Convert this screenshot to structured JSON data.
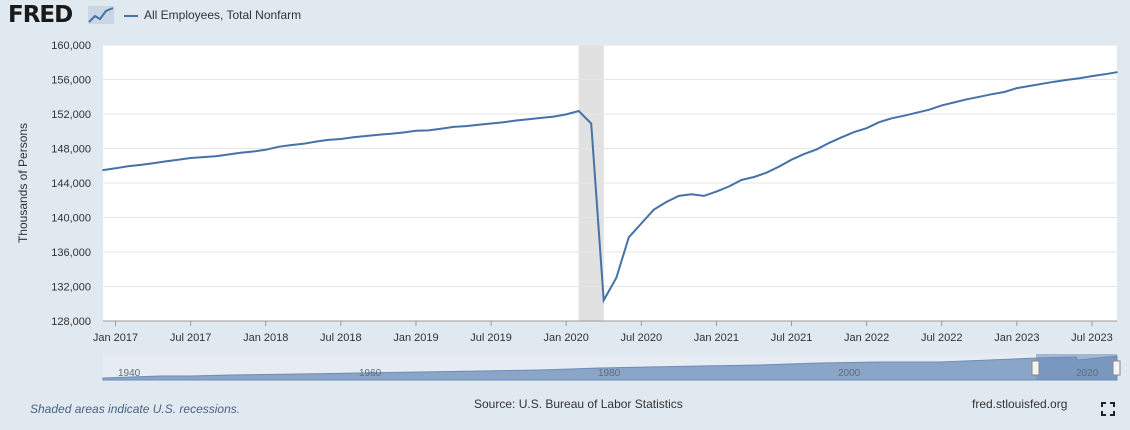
{
  "brand": {
    "logo_text": "FRED"
  },
  "footer": {
    "recession_note": "Shaded areas indicate U.S. recessions.",
    "source": "Source: U.S. Bureau of Labor Statistics",
    "site": "fred.stlouisfed.org"
  },
  "icons": {
    "logo_graph": "line-chart-icon",
    "fullscreen": "fullscreen-icon"
  },
  "colors": {
    "series": "#4572a7",
    "recession": "#e1e1e1",
    "background": "#e1e9f0"
  },
  "chart_data": {
    "type": "line",
    "title": "",
    "xlabel": "",
    "ylabel": "Thousands of Persons",
    "ylim": [
      128000,
      160000
    ],
    "yticks": [
      128000,
      132000,
      136000,
      140000,
      144000,
      148000,
      152000,
      156000,
      160000
    ],
    "ytick_labels": [
      "128,000",
      "132,000",
      "136,000",
      "140,000",
      "144,000",
      "148,000",
      "152,000",
      "156,000",
      "160,000"
    ],
    "xlim": [
      "2016-12",
      "2023-09"
    ],
    "xticks": [
      "2017-01",
      "2017-07",
      "2018-01",
      "2018-07",
      "2019-01",
      "2019-07",
      "2020-01",
      "2020-07",
      "2021-01",
      "2021-07",
      "2022-01",
      "2022-07",
      "2023-01",
      "2023-07"
    ],
    "xtick_labels": [
      "Jan 2017",
      "Jul 2017",
      "Jan 2018",
      "Jul 2018",
      "Jan 2019",
      "Jul 2019",
      "Jan 2020",
      "Jul 2020",
      "Jan 2021",
      "Jul 2021",
      "Jan 2022",
      "Jul 2022",
      "Jan 2023",
      "Jul 2023"
    ],
    "grid": true,
    "legend": "top-left",
    "recessions": [
      {
        "start": "2020-02",
        "end": "2020-04"
      }
    ],
    "series": [
      {
        "name": "All Employees, Total Nonfarm",
        "x": [
          "2016-12",
          "2017-01",
          "2017-02",
          "2017-03",
          "2017-04",
          "2017-05",
          "2017-06",
          "2017-07",
          "2017-08",
          "2017-09",
          "2017-10",
          "2017-11",
          "2017-12",
          "2018-01",
          "2018-02",
          "2018-03",
          "2018-04",
          "2018-05",
          "2018-06",
          "2018-07",
          "2018-08",
          "2018-09",
          "2018-10",
          "2018-11",
          "2018-12",
          "2019-01",
          "2019-02",
          "2019-03",
          "2019-04",
          "2019-05",
          "2019-06",
          "2019-07",
          "2019-08",
          "2019-09",
          "2019-10",
          "2019-11",
          "2019-12",
          "2020-01",
          "2020-02",
          "2020-03",
          "2020-04",
          "2020-05",
          "2020-06",
          "2020-07",
          "2020-08",
          "2020-09",
          "2020-10",
          "2020-11",
          "2020-12",
          "2021-01",
          "2021-02",
          "2021-03",
          "2021-04",
          "2021-05",
          "2021-06",
          "2021-07",
          "2021-08",
          "2021-09",
          "2021-10",
          "2021-11",
          "2021-12",
          "2022-01",
          "2022-02",
          "2022-03",
          "2022-04",
          "2022-05",
          "2022-06",
          "2022-07",
          "2022-08",
          "2022-09",
          "2022-10",
          "2022-11",
          "2022-12",
          "2023-01",
          "2023-02",
          "2023-03",
          "2023-04",
          "2023-05",
          "2023-06",
          "2023-07",
          "2023-08",
          "2023-09"
        ],
        "values": [
          145500,
          145700,
          145950,
          146100,
          146300,
          146500,
          146700,
          146900,
          147000,
          147100,
          147300,
          147500,
          147650,
          147850,
          148200,
          148400,
          148550,
          148800,
          149000,
          149100,
          149300,
          149450,
          149600,
          149700,
          149850,
          150050,
          150100,
          150300,
          150500,
          150600,
          150750,
          150900,
          151050,
          151250,
          151400,
          151550,
          151700,
          151950,
          152350,
          150900,
          130400,
          133000,
          137700,
          139300,
          140900,
          141800,
          142500,
          142700,
          142500,
          143000,
          143600,
          144350,
          144700,
          145200,
          145900,
          146700,
          147350,
          147900,
          148650,
          149300,
          149900,
          150350,
          151050,
          151500,
          151800,
          152150,
          152500,
          153000,
          153350,
          153700,
          154000,
          154300,
          154550,
          155000,
          155250,
          155500,
          155750,
          155950,
          156150,
          156400,
          156600,
          156850
        ]
      }
    ],
    "navigator": {
      "labels": [
        "1940",
        "1960",
        "1980",
        "2000",
        "2020"
      ]
    }
  }
}
